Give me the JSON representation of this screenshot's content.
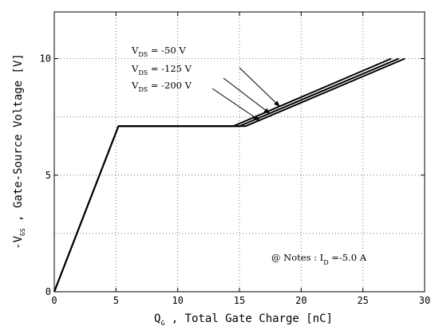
{
  "chart_data": {
    "type": "line",
    "xlim": [
      0,
      30
    ],
    "ylim": [
      0,
      12
    ],
    "x_ticks": [
      0,
      5,
      10,
      15,
      20,
      25,
      30
    ],
    "y_ticks": [
      0,
      5,
      10
    ],
    "grid": true,
    "xlabel": {
      "main": "Q",
      "sub": "G",
      "rest": " , Total Gate Charge  [nC]"
    },
    "ylabel": {
      "main": "-V",
      "sub": "GS",
      "rest": " ,  Gate-Source Voltage   [V]"
    },
    "series": [
      {
        "name": {
          "main": "V",
          "sub": "DS",
          "rest": " = -50 V"
        },
        "x": [
          0,
          5.2,
          14.5,
          27.3
        ],
        "y": [
          0,
          7.1,
          7.1,
          10
        ]
      },
      {
        "name": {
          "main": "V",
          "sub": "DS",
          "rest": " = -125 V"
        },
        "x": [
          0,
          5.2,
          15.0,
          27.9
        ],
        "y": [
          0,
          7.1,
          7.1,
          10
        ]
      },
      {
        "name": {
          "main": "V",
          "sub": "DS",
          "rest": " = -200 V"
        },
        "x": [
          0,
          5.2,
          15.5,
          28.4
        ],
        "y": [
          0,
          7.1,
          7.1,
          10
        ]
      }
    ],
    "note": {
      "pre": "@ Notes : I",
      "sub": "D",
      "post": " =-5.0 A"
    }
  }
}
